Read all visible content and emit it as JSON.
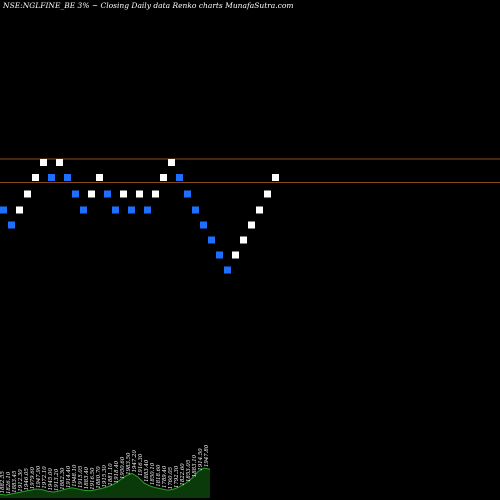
{
  "chart_data": {
    "type": "renko",
    "title": "NSE:NGLFINE_BE 3% ~  Closing Daily data  Renko  charts MunafaSutra.com",
    "colors": {
      "background": "#000000",
      "up_brick": "#ffffff",
      "down_brick": "#1f6fff",
      "reference_line": "#b8651f",
      "volume_area": "#0a3a0a",
      "volume_top": "#2aa02a",
      "text": "#ffffff"
    },
    "reference_lines": [
      1982,
      1935
    ],
    "y_range": [
      1300,
      2300
    ],
    "bricks": [
      {
        "level": 1880,
        "dir": "down"
      },
      {
        "level": 1850,
        "dir": "down"
      },
      {
        "level": 1880,
        "dir": "up"
      },
      {
        "level": 1912,
        "dir": "up"
      },
      {
        "level": 1945,
        "dir": "up"
      },
      {
        "level": 1975,
        "dir": "up"
      },
      {
        "level": 1945,
        "dir": "down"
      },
      {
        "level": 1975,
        "dir": "up"
      },
      {
        "level": 1945,
        "dir": "down"
      },
      {
        "level": 1912,
        "dir": "down"
      },
      {
        "level": 1880,
        "dir": "down"
      },
      {
        "level": 1912,
        "dir": "up"
      },
      {
        "level": 1945,
        "dir": "up"
      },
      {
        "level": 1912,
        "dir": "down"
      },
      {
        "level": 1880,
        "dir": "down"
      },
      {
        "level": 1912,
        "dir": "up"
      },
      {
        "level": 1880,
        "dir": "down"
      },
      {
        "level": 1912,
        "dir": "up"
      },
      {
        "level": 1880,
        "dir": "down"
      },
      {
        "level": 1912,
        "dir": "up"
      },
      {
        "level": 1945,
        "dir": "up"
      },
      {
        "level": 1975,
        "dir": "up"
      },
      {
        "level": 1945,
        "dir": "down"
      },
      {
        "level": 1912,
        "dir": "down"
      },
      {
        "level": 1880,
        "dir": "down"
      },
      {
        "level": 1850,
        "dir": "down"
      },
      {
        "level": 1820,
        "dir": "down"
      },
      {
        "level": 1790,
        "dir": "down"
      },
      {
        "level": 1760,
        "dir": "down"
      },
      {
        "level": 1790,
        "dir": "up"
      },
      {
        "level": 1820,
        "dir": "up"
      },
      {
        "level": 1850,
        "dir": "up"
      },
      {
        "level": 1880,
        "dir": "up"
      },
      {
        "level": 1912,
        "dir": "up"
      },
      {
        "level": 1945,
        "dir": "up"
      }
    ],
    "volume": [
      0.12,
      0.1,
      0.14,
      0.18,
      0.22,
      0.26,
      0.3,
      0.28,
      0.22,
      0.2,
      0.24,
      0.3,
      0.34,
      0.3,
      0.26,
      0.24,
      0.28,
      0.32,
      0.38,
      0.46,
      0.6,
      0.74,
      0.82,
      0.7,
      0.5,
      0.4,
      0.34,
      0.3,
      0.26,
      0.3,
      0.38,
      0.5,
      0.66,
      0.88,
      1.0,
      0.96
    ],
    "volume_labels": [
      "1882.55",
      "1826.10",
      "1883.45",
      "1912.30",
      "1946.05",
      "1979.60",
      "1947.90",
      "1972.10",
      "1945.00",
      "1913.20",
      "1882.30",
      "1914.40",
      "1948.10",
      "1915.05",
      "1883.40",
      "1916.50",
      "1880.70",
      "1915.30",
      "1881.10",
      "1918.40",
      "1950.60",
      "1983.50",
      "1947.20",
      "1916.30",
      "1883.40",
      "1850.10",
      "1818.60",
      "1789.40",
      "1760.05",
      "1792.30",
      "1822.60",
      "1853.05",
      "1883.10",
      "1914.50",
      "1947.80"
    ]
  }
}
